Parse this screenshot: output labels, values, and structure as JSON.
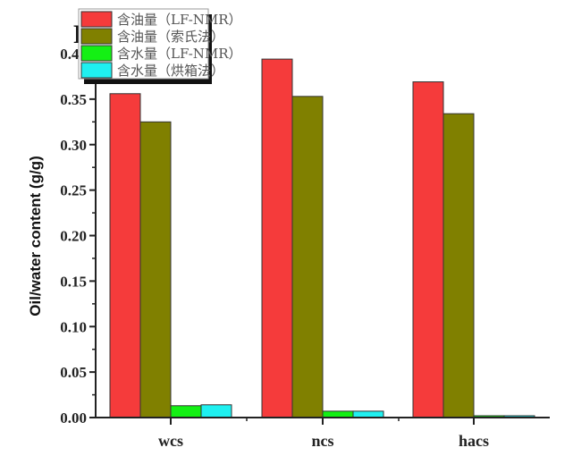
{
  "chart_data": {
    "type": "bar",
    "panel_label": "F",
    "title": "",
    "xlabel": "",
    "ylabel": "Oil/water content (g/g)",
    "ylim": [
      0,
      0.4
    ],
    "yticks": [
      "0.00",
      "0.05",
      "0.10",
      "0.15",
      "0.20",
      "0.25",
      "0.30",
      "0.35",
      "0.40"
    ],
    "categories": [
      "wcs",
      "ncs",
      "hacs"
    ],
    "grid": false,
    "legend_position": "top-left",
    "series": [
      {
        "name": "含油量（LF-NMR）",
        "color": "#f53b3b",
        "values": [
          0.356,
          0.394,
          0.369
        ]
      },
      {
        "name": "含油量（索氏法）",
        "color": "#808000",
        "values": [
          0.325,
          0.353,
          0.334
        ]
      },
      {
        "name": "含水量（LF-NMR）",
        "color": "#14f014",
        "values": [
          0.013,
          0.007,
          0.002
        ]
      },
      {
        "name": "含水量（烘箱法）",
        "color": "#1ff0f0",
        "values": [
          0.014,
          0.007,
          0.002
        ]
      }
    ]
  }
}
